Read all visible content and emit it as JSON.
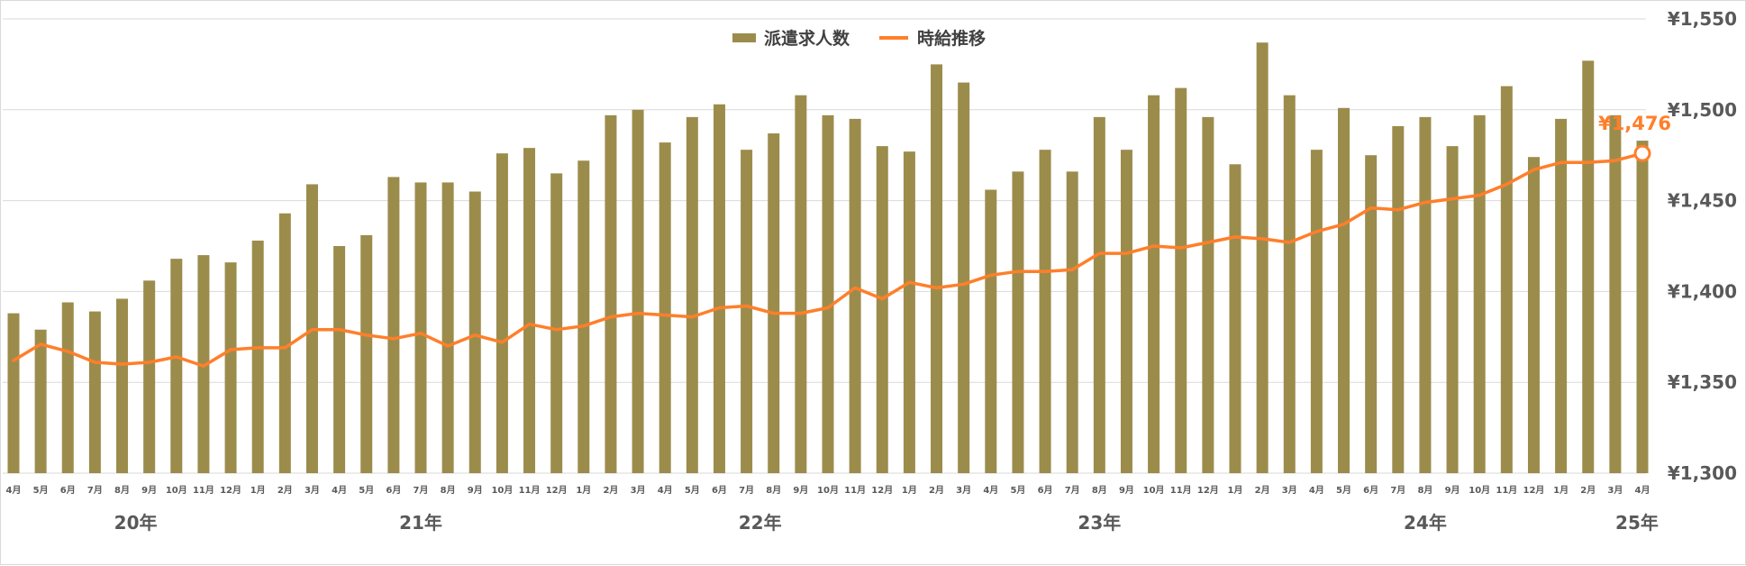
{
  "chart_data": {
    "type": "bar",
    "legend": {
      "position": "top",
      "items": [
        "派遣求人数",
        "時給推移"
      ]
    },
    "y_axis": {
      "position": "right",
      "min": 1300,
      "max": 1550,
      "ticks": [
        "¥1,300",
        "¥1,350",
        "¥1,400",
        "¥1,450",
        "¥1,500",
        "¥1,550"
      ],
      "grid": true
    },
    "categories": [
      "4月",
      "5月",
      "6月",
      "7月",
      "8月",
      "9月",
      "10月",
      "11月",
      "12月",
      "1月",
      "2月",
      "3月",
      "4月",
      "5月",
      "6月",
      "7月",
      "8月",
      "9月",
      "10月",
      "11月",
      "12月",
      "1月",
      "2月",
      "3月",
      "4月",
      "5月",
      "6月",
      "7月",
      "8月",
      "9月",
      "10月",
      "11月",
      "12月",
      "1月",
      "2月",
      "3月",
      "4月",
      "5月",
      "6月",
      "7月",
      "8月",
      "9月",
      "10月",
      "11月",
      "12月",
      "1月",
      "2月",
      "3月",
      "4月",
      "5月",
      "6月",
      "7月",
      "8月",
      "9月",
      "10月",
      "11月",
      "12月",
      "1月",
      "2月",
      "3月",
      "4月"
    ],
    "year_labels": [
      {
        "label": "20年",
        "index": 4.5
      },
      {
        "label": "21年",
        "index": 15
      },
      {
        "label": "22年",
        "index": 27.5
      },
      {
        "label": "23年",
        "index": 40
      },
      {
        "label": "24年",
        "index": 52
      },
      {
        "label": "25年",
        "index": 59.8
      }
    ],
    "series": [
      {
        "name": "派遣求人数",
        "type": "bar",
        "color": "#9c8c4c",
        "values": [
          1388,
          1379,
          1394,
          1389,
          1396,
          1406,
          1418,
          1420,
          1416,
          1428,
          1443,
          1459,
          1425,
          1431,
          1463,
          1460,
          1460,
          1455,
          1476,
          1479,
          1465,
          1472,
          1497,
          1500,
          1482,
          1496,
          1503,
          1478,
          1487,
          1508,
          1497,
          1495,
          1480,
          1477,
          1525,
          1515,
          1456,
          1466,
          1478,
          1466,
          1496,
          1478,
          1508,
          1512,
          1496,
          1470,
          1537,
          1508,
          1478,
          1501,
          1475,
          1491,
          1496,
          1480,
          1497,
          1513,
          1474,
          1495,
          1527,
          1497,
          1483
        ],
        "units": "relative (no printed axis)"
      },
      {
        "name": "時給推移",
        "type": "line",
        "color": "#ff7f2a",
        "values": [
          1362,
          1371,
          1367,
          1361,
          1360,
          1361,
          1364,
          1359,
          1368,
          1369,
          1369,
          1379,
          1379,
          1376,
          1374,
          1377,
          1370,
          1376,
          1372,
          1382,
          1379,
          1381,
          1386,
          1388,
          1387,
          1386,
          1391,
          1392,
          1388,
          1388,
          1391,
          1402,
          1396,
          1405,
          1402,
          1404,
          1409,
          1411,
          1411,
          1412,
          1421,
          1421,
          1425,
          1424,
          1427,
          1430,
          1429,
          1427,
          1433,
          1437,
          1446,
          1445,
          1449,
          1451,
          1453,
          1459,
          1467,
          1471,
          1471,
          1472,
          1476
        ]
      }
    ],
    "annotation": {
      "label": "¥1,476",
      "index": 60,
      "value": 1476
    }
  }
}
